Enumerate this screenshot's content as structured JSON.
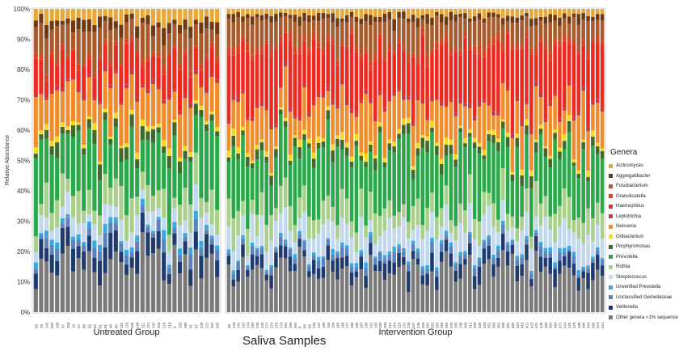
{
  "chart_data": {
    "type": "bar",
    "stacked": true,
    "title": "Saliva Samples",
    "ylabel": "Relative Abundance",
    "ylim": [
      0,
      100
    ],
    "yticks": [
      "0%",
      "10%",
      "20%",
      "30%",
      "40%",
      "50%",
      "60%",
      "70%",
      "80%",
      "90%",
      "100%"
    ],
    "legend_title": "Genera",
    "legend_position": "right",
    "grid": false,
    "panels": [
      {
        "name": "Untreated Group",
        "categories": [
          "65",
          "78",
          "242",
          "202",
          "100",
          "37",
          "204",
          "16",
          "27",
          "60",
          "90",
          "62",
          "81",
          "91",
          "46",
          "85",
          "115",
          "129",
          "105",
          "146",
          "211",
          "221",
          "237",
          "204",
          "216",
          "218",
          "9",
          "258",
          "389",
          "61",
          "87",
          "220",
          "271",
          "207",
          "325"
        ]
      },
      {
        "name": "Intervention Group",
        "categories": [
          "48",
          "133",
          "141",
          "152",
          "174",
          "183",
          "230",
          "233",
          "272",
          "274",
          "278",
          "279",
          "291",
          "299",
          "301",
          "8",
          "89",
          "96",
          "135",
          "147",
          "160",
          "163",
          "164",
          "166",
          "168",
          "177",
          "180",
          "185",
          "187",
          "190",
          "191",
          "193",
          "199",
          "200",
          "212",
          "214",
          "223",
          "231",
          "234",
          "237",
          "246",
          "259",
          "261",
          "262",
          "263",
          "265",
          "269",
          "275",
          "285",
          "296",
          "309",
          "312",
          "320",
          "326",
          "333",
          "352",
          "359",
          "362",
          "399",
          "401",
          "402",
          "410",
          "419",
          "421",
          "423",
          "431",
          "449",
          "460",
          "462",
          "464",
          "471",
          "474",
          "476",
          "479",
          "488",
          "490",
          "493",
          "509",
          "513",
          "514"
        ]
      }
    ],
    "series": [
      {
        "name": "Actinomyces",
        "color": "#e8a838"
      },
      {
        "name": "Aggregatibacter",
        "color": "#6e3a14"
      },
      {
        "name": "Fusobacterium",
        "color": "#a85a2c"
      },
      {
        "name": "Granulicatella",
        "color": "#d8441f"
      },
      {
        "name": "Haemophilus",
        "color": "#ec2a22"
      },
      {
        "name": "Leptotrichia",
        "color": "#c23a4a"
      },
      {
        "name": "Neisseria",
        "color": "#ee8c2e"
      },
      {
        "name": "Oribacterium",
        "color": "#f5d820"
      },
      {
        "name": "Porphyromonas",
        "color": "#3f6a2c"
      },
      {
        "name": "Prevotella",
        "color": "#2aa84a"
      },
      {
        "name": "Rothia",
        "color": "#a8d08a"
      },
      {
        "name": "Streptococcus",
        "color": "#c2d8ee"
      },
      {
        "name": "Unverified Prevotella",
        "color": "#38a8e0"
      },
      {
        "name": "Unclassified Gemellaceae",
        "color": "#5a82bc"
      },
      {
        "name": "Veillonella",
        "color": "#1e3a6e"
      },
      {
        "name": "Other genera <1% sequence",
        "color": "#7a7a7a"
      }
    ],
    "group_means": {
      "Untreated Group": {
        "Other genera <1% sequence": 16,
        "Veillonella": 6,
        "Unclassified Gemellaceae": 3,
        "Unverified Prevotella": 1.5,
        "Streptococcus": 5,
        "Rothia": 8,
        "Prevotella": 17,
        "Porphyromonas": 3,
        "Oribacterium": 1.5,
        "Neisseria": 12,
        "Leptotrichia": 1,
        "Haemophilus": 10,
        "Granulicatella": 1.5,
        "Fusobacterium": 8,
        "Aggregatibacter": 3,
        "Actinomyces": 3.5
      },
      "Intervention Group": {
        "Other genera <1% sequence": 13,
        "Veillonella": 4,
        "Unclassified Gemellaceae": 2,
        "Unverified Prevotella": 1,
        "Streptococcus": 7,
        "Rothia": 7,
        "Prevotella": 19,
        "Porphyromonas": 2.5,
        "Oribacterium": 1.5,
        "Neisseria": 11,
        "Leptotrichia": 1,
        "Haemophilus": 18,
        "Granulicatella": 2,
        "Fusobacterium": 7,
        "Aggregatibacter": 2,
        "Actinomyces": 2
      }
    }
  }
}
